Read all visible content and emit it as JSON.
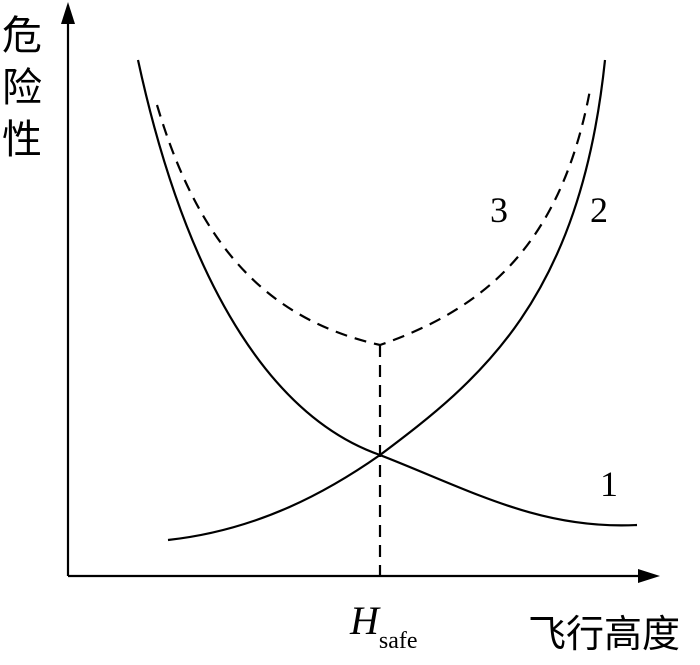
{
  "axis": {
    "y_label": "危险性",
    "x_label": "飞行高度"
  },
  "curves": {
    "labels": [
      "1",
      "2",
      "3"
    ]
  },
  "marker": {
    "symbol": "H",
    "subscript": "safe"
  }
}
